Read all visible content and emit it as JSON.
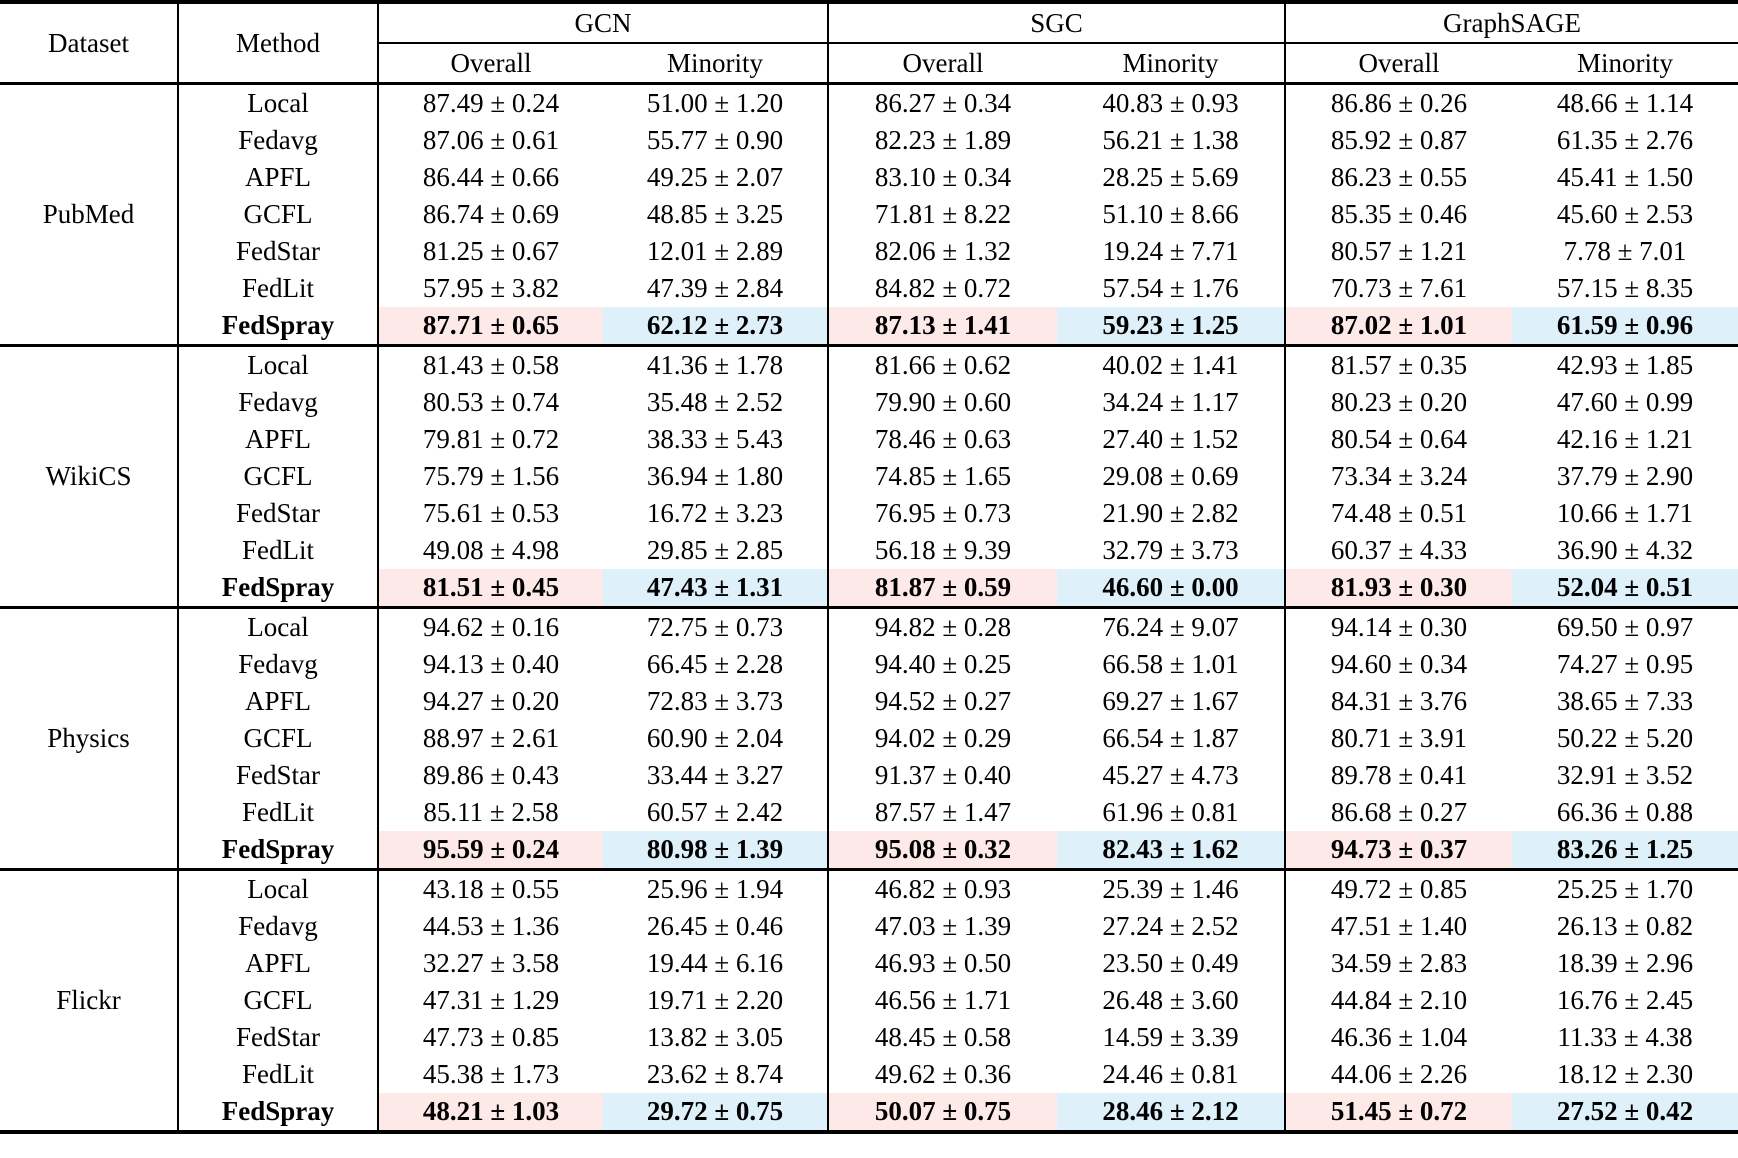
{
  "table": {
    "col1_header": "Dataset",
    "col2_header": "Method",
    "groups": [
      {
        "label": "GCN",
        "sub": [
          "Overall",
          "Minority"
        ]
      },
      {
        "label": "SGC",
        "sub": [
          "Overall",
          "Minority"
        ]
      },
      {
        "label": "GraphSAGE",
        "sub": [
          "Overall",
          "Minority"
        ]
      }
    ],
    "highlight_overall_color": "#fce9e8",
    "highlight_minority_color": "#def0fa",
    "blocks": [
      {
        "dataset": "PubMed",
        "rows": [
          {
            "method": "Local",
            "bold": false,
            "values": [
              "87.49 ± 0.24",
              "51.00 ± 1.20",
              "86.27 ± 0.34",
              "40.83 ± 0.93",
              "86.86 ± 0.26",
              "48.66 ± 1.14"
            ]
          },
          {
            "method": "Fedavg",
            "bold": false,
            "values": [
              "87.06 ± 0.61",
              "55.77 ± 0.90",
              "82.23 ± 1.89",
              "56.21 ± 1.38",
              "85.92 ± 0.87",
              "61.35 ± 2.76"
            ]
          },
          {
            "method": "APFL",
            "bold": false,
            "values": [
              "86.44 ± 0.66",
              "49.25 ± 2.07",
              "83.10 ± 0.34",
              "28.25 ± 5.69",
              "86.23 ± 0.55",
              "45.41 ± 1.50"
            ]
          },
          {
            "method": "GCFL",
            "bold": false,
            "values": [
              "86.74 ± 0.69",
              "48.85 ± 3.25",
              "71.81 ± 8.22",
              "51.10 ± 8.66",
              "85.35 ± 0.46",
              "45.60 ± 2.53"
            ]
          },
          {
            "method": "FedStar",
            "bold": false,
            "values": [
              "81.25 ± 0.67",
              "12.01 ± 2.89",
              "82.06 ± 1.32",
              "19.24 ± 7.71",
              "80.57 ± 1.21",
              "7.78 ± 7.01"
            ]
          },
          {
            "method": "FedLit",
            "bold": false,
            "values": [
              "57.95 ± 3.82",
              "47.39 ± 2.84",
              "84.82 ± 0.72",
              "57.54 ± 1.76",
              "70.73 ± 7.61",
              "57.15 ± 8.35"
            ]
          },
          {
            "method": "FedSpray",
            "bold": true,
            "values": [
              "87.71 ± 0.65",
              "62.12 ± 2.73",
              "87.13 ± 1.41",
              "59.23 ± 1.25",
              "87.02 ± 1.01",
              "61.59 ± 0.96"
            ]
          }
        ]
      },
      {
        "dataset": "WikiCS",
        "rows": [
          {
            "method": "Local",
            "bold": false,
            "values": [
              "81.43 ± 0.58",
              "41.36 ± 1.78",
              "81.66 ± 0.62",
              "40.02 ± 1.41",
              "81.57 ± 0.35",
              "42.93 ± 1.85"
            ]
          },
          {
            "method": "Fedavg",
            "bold": false,
            "values": [
              "80.53 ± 0.74",
              "35.48 ± 2.52",
              "79.90 ± 0.60",
              "34.24 ± 1.17",
              "80.23 ± 0.20",
              "47.60 ± 0.99"
            ]
          },
          {
            "method": "APFL",
            "bold": false,
            "values": [
              "79.81 ± 0.72",
              "38.33 ± 5.43",
              "78.46 ± 0.63",
              "27.40 ± 1.52",
              "80.54 ± 0.64",
              "42.16 ± 1.21"
            ]
          },
          {
            "method": "GCFL",
            "bold": false,
            "values": [
              "75.79 ± 1.56",
              "36.94 ± 1.80",
              "74.85 ± 1.65",
              "29.08 ± 0.69",
              "73.34 ± 3.24",
              "37.79 ± 2.90"
            ]
          },
          {
            "method": "FedStar",
            "bold": false,
            "values": [
              "75.61 ± 0.53",
              "16.72 ± 3.23",
              "76.95 ± 0.73",
              "21.90 ± 2.82",
              "74.48 ± 0.51",
              "10.66 ± 1.71"
            ]
          },
          {
            "method": "FedLit",
            "bold": false,
            "values": [
              "49.08 ± 4.98",
              "29.85 ± 2.85",
              "56.18 ± 9.39",
              "32.79 ± 3.73",
              "60.37 ± 4.33",
              "36.90 ± 4.32"
            ]
          },
          {
            "method": "FedSpray",
            "bold": true,
            "values": [
              "81.51 ± 0.45",
              "47.43 ± 1.31",
              "81.87 ± 0.59",
              "46.60 ± 0.00",
              "81.93 ± 0.30",
              "52.04 ± 0.51"
            ]
          }
        ]
      },
      {
        "dataset": "Physics",
        "rows": [
          {
            "method": "Local",
            "bold": false,
            "values": [
              "94.62 ± 0.16",
              "72.75 ± 0.73",
              "94.82 ± 0.28",
              "76.24 ± 9.07",
              "94.14 ± 0.30",
              "69.50 ± 0.97"
            ]
          },
          {
            "method": "Fedavg",
            "bold": false,
            "values": [
              "94.13 ± 0.40",
              "66.45 ± 2.28",
              "94.40 ± 0.25",
              "66.58 ± 1.01",
              "94.60 ± 0.34",
              "74.27 ± 0.95"
            ]
          },
          {
            "method": "APFL",
            "bold": false,
            "values": [
              "94.27 ± 0.20",
              "72.83 ± 3.73",
              "94.52 ± 0.27",
              "69.27 ± 1.67",
              "84.31 ± 3.76",
              "38.65 ± 7.33"
            ]
          },
          {
            "method": "GCFL",
            "bold": false,
            "values": [
              "88.97 ± 2.61",
              "60.90 ± 2.04",
              "94.02 ± 0.29",
              "66.54 ± 1.87",
              "80.71 ± 3.91",
              "50.22 ± 5.20"
            ]
          },
          {
            "method": "FedStar",
            "bold": false,
            "values": [
              "89.86 ± 0.43",
              "33.44 ± 3.27",
              "91.37 ± 0.40",
              "45.27 ± 4.73",
              "89.78 ± 0.41",
              "32.91 ± 3.52"
            ]
          },
          {
            "method": "FedLit",
            "bold": false,
            "values": [
              "85.11 ± 2.58",
              "60.57 ± 2.42",
              "87.57 ± 1.47",
              "61.96 ± 0.81",
              "86.68 ± 0.27",
              "66.36 ± 0.88"
            ]
          },
          {
            "method": "FedSpray",
            "bold": true,
            "values": [
              "95.59 ± 0.24",
              "80.98 ± 1.39",
              "95.08 ± 0.32",
              "82.43 ± 1.62",
              "94.73 ± 0.37",
              "83.26 ± 1.25"
            ]
          }
        ]
      },
      {
        "dataset": "Flickr",
        "rows": [
          {
            "method": "Local",
            "bold": false,
            "values": [
              "43.18 ± 0.55",
              "25.96 ± 1.94",
              "46.82 ± 0.93",
              "25.39 ± 1.46",
              "49.72 ± 0.85",
              "25.25 ± 1.70"
            ]
          },
          {
            "method": "Fedavg",
            "bold": false,
            "values": [
              "44.53 ± 1.36",
              "26.45 ± 0.46",
              "47.03 ± 1.39",
              "27.24 ± 2.52",
              "47.51 ± 1.40",
              "26.13 ± 0.82"
            ]
          },
          {
            "method": "APFL",
            "bold": false,
            "values": [
              "32.27 ± 3.58",
              "19.44 ± 6.16",
              "46.93 ± 0.50",
              "23.50 ± 0.49",
              "34.59 ± 2.83",
              "18.39 ± 2.96"
            ]
          },
          {
            "method": "GCFL",
            "bold": false,
            "values": [
              "47.31 ± 1.29",
              "19.71 ± 2.20",
              "46.56 ± 1.71",
              "26.48 ± 3.60",
              "44.84 ± 2.10",
              "16.76 ± 2.45"
            ]
          },
          {
            "method": "FedStar",
            "bold": false,
            "values": [
              "47.73 ± 0.85",
              "13.82 ± 3.05",
              "48.45 ± 0.58",
              "14.59 ± 3.39",
              "46.36 ± 1.04",
              "11.33 ± 4.38"
            ]
          },
          {
            "method": "FedLit",
            "bold": false,
            "values": [
              "45.38 ± 1.73",
              "23.62 ± 8.74",
              "49.62 ± 0.36",
              "24.46 ± 0.81",
              "44.06 ± 2.26",
              "18.12 ± 2.30"
            ]
          },
          {
            "method": "FedSpray",
            "bold": true,
            "values": [
              "48.21 ± 1.03",
              "29.72 ± 0.75",
              "50.07 ± 0.75",
              "28.46 ± 2.12",
              "51.45 ± 0.72",
              "27.52 ± 0.42"
            ]
          }
        ]
      }
    ]
  }
}
